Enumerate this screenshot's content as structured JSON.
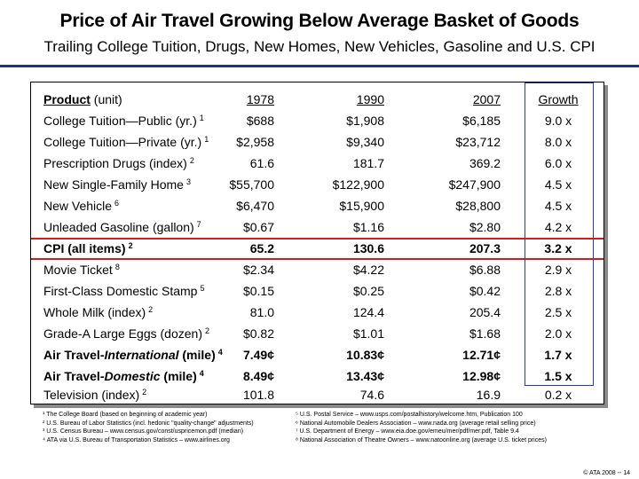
{
  "header": {
    "title": "Price of Air Travel Growing Below Average Basket of Goods",
    "subtitle": "Trailing College Tuition, Drugs, New Homes, New Vehicles, Gasoline and U.S. CPI"
  },
  "table": {
    "columns": {
      "product_label": "Product",
      "product_unit": "(unit)",
      "y1978": "1978",
      "y1990": "1990",
      "y2007": "2007",
      "growth": "Growth"
    },
    "rows": [
      {
        "product": "College Tuition—Public (yr.)",
        "note": "1",
        "v1978": "$688",
        "v1990": "$1,908",
        "v2007": "$6,185",
        "growth": "9.0 x"
      },
      {
        "product": "College Tuition—Private (yr.)",
        "note": "1",
        "v1978": "$2,958",
        "v1990": "$9,340",
        "v2007": "$23,712",
        "growth": "8.0 x"
      },
      {
        "product": "Prescription Drugs (index)",
        "note": "2",
        "v1978": "61.6",
        "v1990": "181.7",
        "v2007": "369.2",
        "growth": "6.0 x"
      },
      {
        "product": "New Single-Family Home",
        "note": "3",
        "v1978": "$55,700",
        "v1990": "$122,900",
        "v2007": "$247,900",
        "growth": "4.5 x"
      },
      {
        "product": "New Vehicle",
        "note": "6",
        "v1978": "$6,470",
        "v1990": "$15,900",
        "v2007": "$28,800",
        "growth": "4.5 x"
      },
      {
        "product": "Unleaded Gasoline (gallon)",
        "note": "7",
        "v1978": "$0.67",
        "v1990": "$1.16",
        "v2007": "$2.80",
        "growth": "4.2 x"
      },
      {
        "product": "CPI (all items)",
        "note": "2",
        "v1978": "65.2",
        "v1990": "130.6",
        "v2007": "207.3",
        "growth": "3.2 x"
      },
      {
        "product": "Movie Ticket",
        "note": "8",
        "v1978": "$2.34",
        "v1990": "$4.22",
        "v2007": "$6.88",
        "growth": "2.9 x"
      },
      {
        "product": "First-Class Domestic Stamp",
        "note": "5",
        "v1978": "$0.15",
        "v1990": "$0.25",
        "v2007": "$0.42",
        "growth": "2.8 x"
      },
      {
        "product": "Whole Milk (index)",
        "note": "2",
        "v1978": "81.0",
        "v1990": "124.4",
        "v2007": "205.4",
        "growth": "2.5 x"
      },
      {
        "product": "Grade-A Large Eggs (dozen)",
        "note": "2",
        "v1978": "$0.82",
        "v1990": "$1.01",
        "v2007": "$1.68",
        "growth": "2.0 x"
      },
      {
        "product_prefix": "Air Travel-",
        "product_em": "International",
        "product_suffix": " (mile)",
        "note": "4",
        "v1978": "7.49¢",
        "v1990": "10.83¢",
        "v2007": "12.71¢",
        "growth": "1.7 x"
      },
      {
        "product_prefix": "Air Travel-",
        "product_em": "Domestic",
        "product_suffix": " (mile)",
        "note": "4",
        "v1978": "8.49¢",
        "v1990": "13.43¢",
        "v2007": "12.98¢",
        "growth": "1.5 x"
      },
      {
        "product": "Television (index)",
        "note": "2",
        "v1978": "101.8",
        "v1990": "74.6",
        "v2007": "16.9",
        "growth": "0.2 x"
      }
    ]
  },
  "footnotes": {
    "left": [
      "¹ The College Board (based on beginning of academic year)",
      "² U.S. Bureau of Labor Statistics (incl. hedonic \"quality-change\" adjustments)",
      "³ U.S. Census Bureau – www.census.gov/const/uspricemon.pdf (median)",
      "⁴ ATA via U.S. Bureau of Transportation Statistics – www.airlines.org"
    ],
    "right": [
      "⁵ U.S. Postal Service – www.usps.com/postalhistory/welcome.htm, Publication 100",
      "⁶ National Automobile Dealers Association – www.nada.org (average retail selling price)",
      "⁷ U.S. Department of Energy – www.eia.doe.gov/emeu/mer/pdf/mer.pdf, Table 9.4",
      "⁸ National Association of Theatre Owners – www.natoonline.org (average U.S. ticket prices)"
    ]
  },
  "copyright": "© ATA 2008 -- 14",
  "colors": {
    "accent_blue": "#23357a",
    "growth_box_border": "#1e3f9c",
    "highlight_red": "#cc1f1f"
  }
}
